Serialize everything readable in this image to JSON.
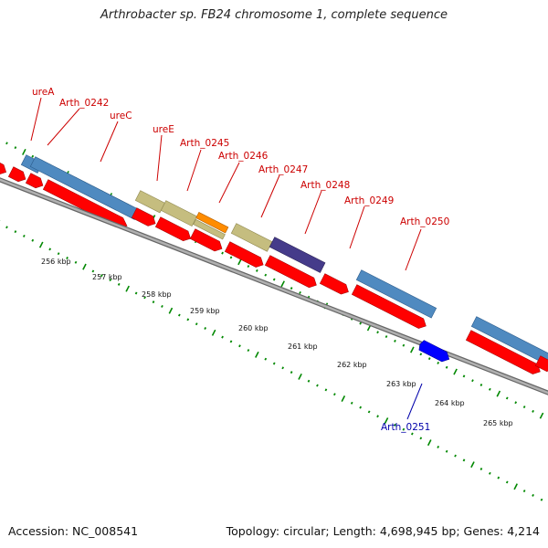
{
  "title": "Arthrobacter sp. FB24 chromosome 1, complete sequence",
  "footer": {
    "accession": "Accession: NC_008541",
    "stats": "Topology: circular; Length: 4,698,945 bp; Genes: 4,214"
  },
  "colors": {
    "cds": "#ff0000",
    "reverse_cds": "#0000ff",
    "label_forward": "#cc0000",
    "label_reverse": "#0000aa",
    "backbone": "#999999",
    "tick": "#008800",
    "cog_blue": "#4f8ac0",
    "cog_khaki": "#c5bd7f",
    "cog_orange": "#ff8c00",
    "cog_purple": "#453b8a"
  },
  "scale_labels": [
    "256 kbp",
    "257 kbp",
    "258 kbp",
    "259 kbp",
    "260 kbp",
    "261 kbp",
    "262 kbp",
    "263 kbp",
    "264 kbp",
    "265 kbp"
  ],
  "gene_labels": [
    {
      "text": "ureA",
      "strand": "forward"
    },
    {
      "text": "Arth_0242",
      "strand": "forward"
    },
    {
      "text": "ureC",
      "strand": "forward"
    },
    {
      "text": "ureE",
      "strand": "forward"
    },
    {
      "text": "Arth_0245",
      "strand": "forward"
    },
    {
      "text": "Arth_0246",
      "strand": "forward"
    },
    {
      "text": "Arth_0247",
      "strand": "forward"
    },
    {
      "text": "Arth_0248",
      "strand": "forward"
    },
    {
      "text": "Arth_0249",
      "strand": "forward"
    },
    {
      "text": "Arth_0250",
      "strand": "forward"
    },
    {
      "text": "Arth_0251",
      "strand": "reverse"
    }
  ]
}
